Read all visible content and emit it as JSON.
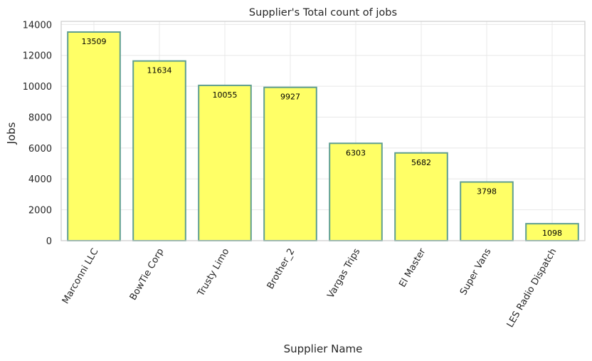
{
  "chart_data": {
    "type": "bar",
    "title": "Supplier's Total count of jobs",
    "xlabel": "Supplier Name",
    "ylabel": "Jobs",
    "categories": [
      "Marconni LLC",
      "BowTie Corp",
      "Trusty Limo",
      "Brother_2",
      "Vargas Trips",
      "El Master",
      "Super Vans",
      "LES Radio Dispatch"
    ],
    "values": [
      13509,
      11634,
      10055,
      9927,
      6303,
      5682,
      3798,
      1098
    ],
    "data_labels": [
      "13509",
      "11634",
      "10055",
      "9927",
      "6303",
      "5682",
      "3798",
      "1098"
    ],
    "ylim": [
      0,
      14200
    ],
    "yticks": [
      0,
      2000,
      4000,
      6000,
      8000,
      10000,
      12000,
      14000
    ],
    "ytick_labels": [
      "0",
      "2000",
      "4000",
      "6000",
      "8000",
      "10000",
      "12000",
      "14000"
    ],
    "grid": true,
    "colors": {
      "bar_fill": "#ffff66",
      "bar_edge": "#5f9e8f",
      "grid": "#e8e8e8",
      "axes_edge": "#cccccc"
    }
  }
}
